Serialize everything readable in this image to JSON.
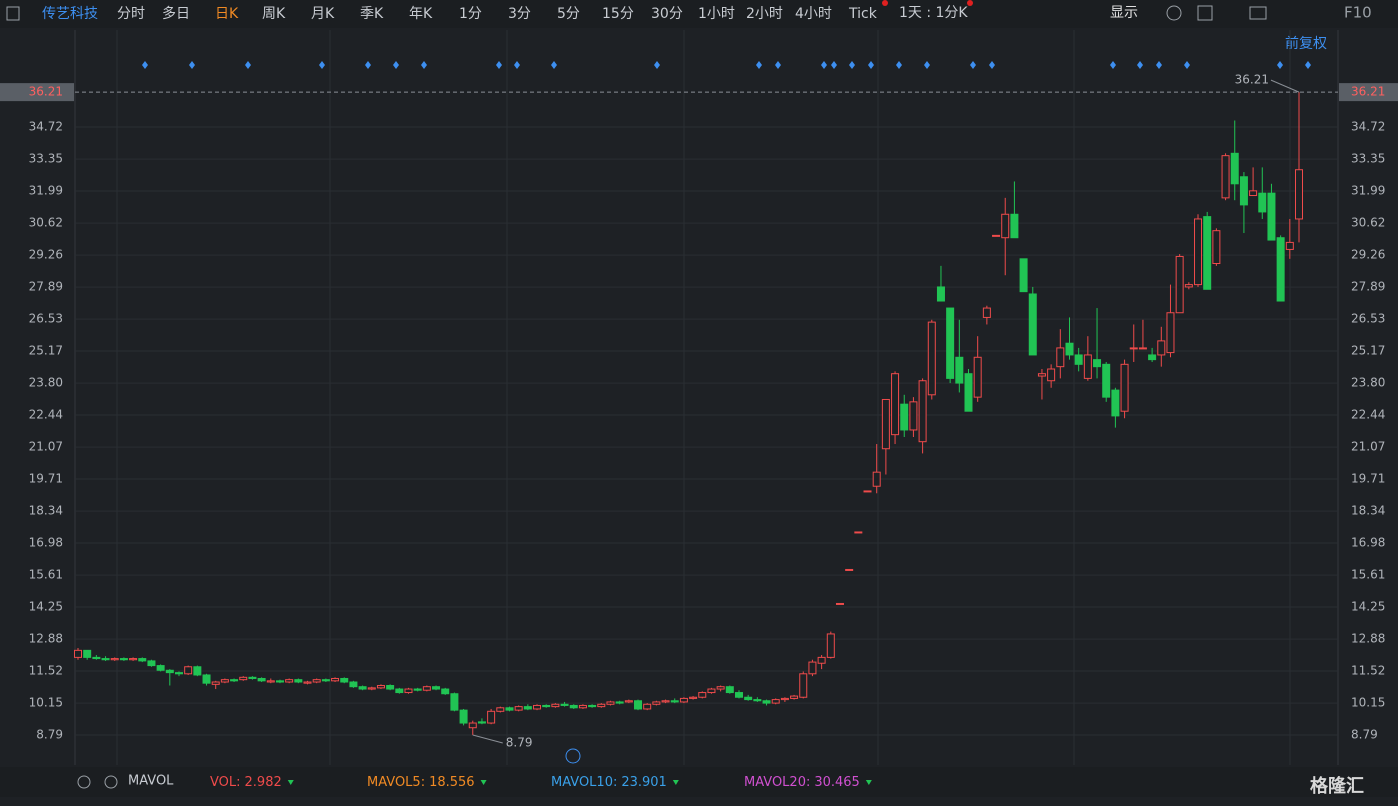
{
  "toolbar": {
    "stock": "传艺科技",
    "periods": [
      "分时",
      "多日",
      "日K",
      "周K",
      "月K",
      "季K",
      "年K",
      "1分",
      "3分",
      "5分",
      "15分",
      "30分",
      "1小时",
      "2小时",
      "4小时",
      "Tick"
    ],
    "active": 2,
    "multi": "1天 : 1分K",
    "display": "显示",
    "f10": "F10"
  },
  "adjust": "前复权",
  "watermark": "格隆汇",
  "chart_data": {
    "type": "candlestick",
    "open": [
      12.1,
      12.4,
      12.1,
      12.05,
      12.0,
      12.05,
      12.0,
      12.05,
      11.95,
      11.75,
      11.55,
      11.45,
      11.4,
      11.7,
      11.35,
      10.95,
      11.05,
      11.15,
      11.15,
      11.25,
      11.2,
      11.05,
      11.1,
      11.05,
      11.15,
      11.0,
      11.05,
      11.15,
      11.1,
      11.2,
      11.05,
      10.85,
      10.75,
      10.8,
      10.9,
      10.75,
      10.6,
      10.75,
      10.7,
      10.85,
      10.75,
      10.55,
      9.85,
      9.1,
      9.35,
      9.3,
      9.8,
      9.95,
      9.85,
      10.0,
      9.9,
      10.05,
      10.0,
      10.1,
      10.05,
      9.95,
      10.05,
      10.0,
      10.1,
      10.2,
      10.2,
      10.25,
      9.9,
      10.1,
      10.2,
      10.25,
      10.2,
      10.35,
      10.4,
      10.6,
      10.75,
      10.85,
      10.6,
      10.4,
      10.3,
      10.25,
      10.15,
      10.3,
      10.35,
      10.4,
      11.4,
      11.85,
      12.1,
      14.4,
      15.85,
      17.45,
      19.2,
      19.4,
      21.0,
      21.6,
      22.9,
      21.8,
      21.3,
      23.3,
      27.9,
      27.0,
      24.9,
      24.2,
      23.2,
      26.6,
      30.1,
      30.0,
      31.0,
      29.1,
      27.6,
      24.1,
      23.9,
      24.5,
      25.5,
      25.0,
      24.0,
      24.8,
      24.6,
      23.5,
      22.6,
      25.3,
      25.3,
      25.0,
      25.0,
      25.1,
      26.8,
      27.9,
      28.0,
      30.9,
      28.9,
      31.7,
      33.6,
      32.6,
      31.8,
      31.9,
      31.9,
      30.0,
      29.5,
      30.8
    ],
    "high": [
      12.5,
      12.4,
      12.2,
      12.15,
      12.1,
      12.1,
      12.1,
      12.1,
      12.0,
      11.8,
      11.6,
      11.5,
      11.75,
      11.75,
      11.4,
      11.1,
      11.2,
      11.2,
      11.3,
      11.3,
      11.25,
      11.2,
      11.15,
      11.2,
      11.2,
      11.1,
      11.2,
      11.2,
      11.25,
      11.25,
      11.1,
      10.9,
      10.85,
      10.95,
      10.95,
      10.8,
      10.8,
      10.8,
      10.9,
      10.9,
      10.8,
      10.6,
      9.9,
      9.4,
      9.5,
      9.9,
      10.0,
      10.0,
      10.05,
      10.1,
      10.1,
      10.1,
      10.15,
      10.2,
      10.1,
      10.1,
      10.1,
      10.15,
      10.25,
      10.25,
      10.3,
      10.3,
      10.15,
      10.25,
      10.3,
      10.35,
      10.4,
      10.45,
      10.65,
      10.8,
      10.9,
      10.9,
      10.7,
      10.5,
      10.4,
      10.3,
      10.35,
      10.4,
      10.5,
      11.5,
      12.0,
      12.2,
      13.2,
      14.4,
      15.85,
      17.45,
      19.2,
      21.2,
      23.1,
      24.3,
      23.3,
      23.2,
      24.0,
      26.5,
      28.8,
      27.0,
      26.5,
      24.4,
      25.8,
      27.1,
      30.1,
      31.7,
      32.4,
      29.1,
      27.9,
      24.4,
      24.6,
      26.1,
      26.6,
      25.3,
      25.8,
      27.0,
      24.7,
      23.6,
      24.8,
      26.3,
      26.5,
      25.3,
      26.2,
      28.0,
      29.3,
      28.1,
      31.0,
      31.1,
      30.4,
      33.6,
      35.0,
      32.8,
      33.0,
      33.0,
      32.3,
      30.1,
      30.8,
      36.21
    ],
    "low": [
      12.0,
      12.0,
      12.0,
      11.95,
      11.95,
      11.95,
      11.95,
      11.9,
      11.7,
      11.5,
      10.9,
      11.3,
      11.35,
      11.3,
      10.9,
      10.75,
      11.0,
      11.05,
      11.1,
      11.15,
      11.05,
      11.0,
      11.0,
      11.0,
      11.0,
      10.95,
      11.0,
      11.05,
      11.05,
      11.0,
      10.8,
      10.7,
      10.7,
      10.75,
      10.7,
      10.55,
      10.55,
      10.65,
      10.65,
      10.7,
      10.5,
      9.8,
      9.2,
      8.79,
      9.25,
      9.25,
      9.75,
      9.8,
      9.8,
      9.85,
      9.85,
      9.95,
      9.95,
      10.0,
      9.9,
      9.9,
      9.95,
      9.95,
      10.05,
      10.1,
      10.15,
      9.85,
      9.85,
      10.05,
      10.15,
      10.15,
      10.15,
      10.3,
      10.35,
      10.55,
      10.65,
      10.55,
      10.35,
      10.25,
      10.2,
      10.05,
      10.1,
      10.2,
      10.3,
      10.35,
      11.3,
      11.6,
      12.05,
      14.4,
      15.85,
      17.45,
      19.2,
      19.1,
      19.9,
      21.2,
      21.5,
      21.5,
      20.8,
      23.1,
      27.3,
      23.8,
      23.4,
      22.6,
      23.0,
      26.3,
      30.1,
      28.4,
      30.0,
      27.7,
      25.0,
      23.1,
      23.6,
      24.0,
      24.8,
      24.3,
      23.9,
      24.0,
      23.0,
      21.9,
      22.3,
      24.7,
      25.3,
      24.7,
      24.5,
      24.9,
      26.8,
      27.8,
      27.9,
      27.8,
      28.8,
      31.6,
      31.6,
      30.2,
      31.8,
      30.8,
      29.9,
      27.3,
      29.1,
      29.8
    ],
    "close": [
      12.4,
      12.1,
      12.05,
      12.0,
      12.05,
      12.0,
      12.05,
      11.95,
      11.75,
      11.55,
      11.45,
      11.4,
      11.7,
      11.35,
      11.0,
      11.05,
      11.15,
      11.1,
      11.25,
      11.2,
      11.1,
      11.1,
      11.05,
      11.15,
      11.05,
      11.05,
      11.15,
      11.1,
      11.2,
      11.05,
      10.85,
      10.75,
      10.8,
      10.9,
      10.75,
      10.6,
      10.75,
      10.7,
      10.85,
      10.75,
      10.55,
      9.85,
      9.3,
      9.3,
      9.3,
      9.8,
      9.95,
      9.85,
      10.0,
      9.9,
      10.05,
      10.0,
      10.1,
      10.05,
      9.95,
      10.05,
      10.0,
      10.1,
      10.2,
      10.15,
      10.25,
      9.9,
      10.1,
      10.2,
      10.25,
      10.2,
      10.35,
      10.4,
      10.6,
      10.75,
      10.85,
      10.6,
      10.4,
      10.3,
      10.25,
      10.15,
      10.3,
      10.35,
      10.45,
      11.4,
      11.9,
      12.1,
      13.1,
      14.4,
      15.85,
      17.45,
      19.2,
      20.0,
      23.1,
      24.2,
      21.8,
      23.0,
      23.9,
      26.4,
      27.3,
      24.0,
      23.8,
      22.6,
      24.9,
      27.0,
      30.1,
      31.0,
      30.0,
      27.7,
      25.0,
      24.2,
      24.4,
      25.3,
      25.0,
      24.6,
      25.0,
      24.5,
      23.2,
      22.4,
      24.6,
      25.3,
      25.3,
      24.8,
      25.6,
      26.8,
      29.2,
      28.0,
      30.8,
      27.8,
      30.3,
      33.5,
      32.3,
      31.4,
      32.0,
      31.1,
      29.9,
      27.3,
      29.8,
      32.9
    ],
    "last_price": 36.21,
    "ylim": [
      7.51,
      37.58
    ],
    "yticks": [
      {
        "value": 8.79,
        "label": "8.79"
      },
      10.15,
      11.52,
      12.88,
      14.25,
      15.61,
      16.98,
      18.34,
      19.71,
      21.07,
      22.44,
      {
        "value": 23.8,
        "label": "23.80"
      },
      25.17,
      26.53,
      27.89,
      29.26,
      30.62,
      31.99,
      33.35,
      34.72
    ],
    "grid": true,
    "up_color": "#ef4b4b",
    "down_color": "#21c454"
  },
  "indicator": {
    "name": "MAVOL",
    "items": [
      {
        "label": "VOL:",
        "value": 2.982,
        "color": "#ef4b4b"
      },
      {
        "label": "MAVOL5:",
        "value": 18.556,
        "color": "#f08a24"
      },
      {
        "label": "MAVOL10:",
        "value": 23.901,
        "color": "#3aa0e8"
      },
      {
        "label": "MAVOL20:",
        "value": 30.465,
        "color": "#d050d0"
      }
    ]
  }
}
